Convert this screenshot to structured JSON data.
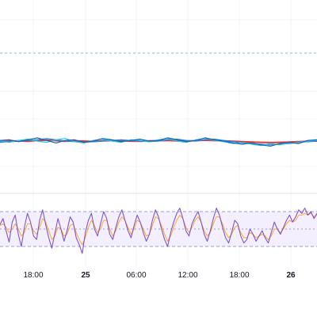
{
  "chart_data": [
    {
      "type": "line",
      "panel": "price",
      "series": [
        {
          "values": [
            -0.05,
            0.0,
            0.02,
            -0.02,
            0.05,
            0.08,
            0.03,
            -0.01,
            0.02,
            0.0,
            -0.03,
            0.01,
            0.04,
            0.02,
            0.0,
            -0.02,
            0.01,
            0.03,
            0.05,
            0.02,
            0.0,
            0.03,
            0.06,
            0.04,
            0.01,
            -0.02,
            -0.05,
            -0.08,
            -0.1,
            -0.12,
            -0.1,
            -0.08,
            -0.05,
            -0.02,
            0.0
          ]
        },
        {
          "values": [
            -0.1,
            -0.05,
            0.0,
            0.05,
            0.1,
            0.2,
            0.1,
            0.0,
            -0.05,
            -0.1,
            -0.05,
            0.0,
            0.05,
            0.1,
            0.05,
            0.0,
            -0.05,
            0.0,
            0.1,
            0.15,
            0.05,
            0.0,
            0.1,
            0.15,
            0.05,
            -0.05,
            -0.15,
            -0.2,
            -0.25,
            -0.3,
            -0.25,
            -0.2,
            -0.1,
            -0.05,
            0.0
          ]
        },
        {
          "values": [
            0.0,
            -0.1,
            0.05,
            0.15,
            0.0,
            -0.1,
            0.1,
            0.2,
            -0.05,
            -0.15,
            0.05,
            0.15,
            0.0,
            -0.1,
            0.1,
            0.05,
            -0.05,
            0.1,
            0.2,
            0.0,
            -0.1,
            0.1,
            0.2,
            0.05,
            -0.05,
            -0.2,
            -0.1,
            -0.25,
            -0.35,
            -0.2,
            -0.3,
            -0.15,
            -0.1,
            0.0,
            0.05
          ]
        },
        {
          "values": [
            0.05,
            0.1,
            -0.05,
            0.1,
            0.25,
            0.05,
            -0.15,
            0.05,
            0.1,
            -0.1,
            0.0,
            0.2,
            0.1,
            -0.05,
            0.05,
            0.15,
            0.0,
            0.05,
            0.25,
            0.1,
            -0.05,
            0.05,
            0.25,
            0.1,
            0.0,
            -0.15,
            -0.25,
            -0.15,
            -0.3,
            -0.4,
            -0.2,
            -0.1,
            -0.2,
            0.05,
            0.1
          ]
        }
      ],
      "colors": [
        "#e53935",
        "#1e88e5",
        "#26c6da",
        "#1565c0"
      ]
    },
    {
      "type": "line",
      "panel": "oscillator",
      "ylim": [
        0,
        100
      ],
      "levels": [
        70,
        50,
        30
      ],
      "series": [
        {
          "values": [
            55,
            62,
            48,
            35,
            58,
            66,
            44,
            30,
            52,
            68,
            58,
            42,
            38,
            60,
            72,
            55,
            40,
            28,
            45,
            62,
            50,
            36,
            48,
            64,
            58,
            40,
            32,
            22,
            46,
            60,
            68,
            50,
            42,
            56,
            70,
            62,
            44,
            38,
            52,
            64,
            72,
            60,
            48,
            40,
            54,
            66,
            58,
            46,
            36,
            44,
            60,
            72,
            64,
            50,
            38,
            30,
            46,
            58,
            68,
            74,
            62,
            48,
            42,
            56,
            64,
            70,
            58,
            44,
            36,
            48,
            62,
            74,
            66,
            52,
            40,
            34,
            46,
            60,
            56,
            42,
            34,
            38,
            50,
            44,
            36,
            42,
            48,
            40,
            34,
            46,
            58,
            50,
            44,
            52,
            60,
            66,
            58,
            64,
            72,
            68,
            74,
            66,
            70,
            62,
            68
          ]
        },
        {
          "values": [
            54,
            56,
            52,
            46,
            50,
            56,
            50,
            42,
            46,
            56,
            56,
            48,
            44,
            52,
            62,
            58,
            48,
            38,
            42,
            52,
            50,
            42,
            44,
            54,
            56,
            46,
            38,
            32,
            40,
            52,
            60,
            54,
            46,
            50,
            60,
            60,
            50,
            42,
            48,
            58,
            64,
            60,
            52,
            44,
            50,
            60,
            58,
            50,
            42,
            44,
            54,
            64,
            62,
            54,
            44,
            36,
            42,
            52,
            60,
            66,
            62,
            52,
            46,
            52,
            60,
            64,
            58,
            48,
            42,
            46,
            56,
            64,
            64,
            56,
            46,
            40,
            44,
            52,
            54,
            46,
            40,
            40,
            46,
            44,
            40,
            42,
            44,
            42,
            38,
            42,
            50,
            50,
            46,
            50,
            56,
            60,
            58,
            60,
            66,
            66,
            68,
            66,
            68,
            64,
            66
          ]
        }
      ],
      "colors": [
        "#7e57c2",
        "#ffa726"
      ]
    }
  ],
  "x_axis": {
    "ticks": [
      {
        "label": "18:00",
        "bold": false
      },
      {
        "label": "25",
        "bold": true
      },
      {
        "label": "06:00",
        "bold": false
      },
      {
        "label": "12:00",
        "bold": false
      },
      {
        "label": "18:00",
        "bold": false
      },
      {
        "label": "26",
        "bold": true
      }
    ]
  },
  "colors": {
    "background": "#ffffff",
    "grid": "#f0f3fa",
    "band_fill": "#f3efff",
    "band_line": "#9e9ec8",
    "dashed_line": "#80b9e8",
    "separator": "#e0e3eb"
  }
}
